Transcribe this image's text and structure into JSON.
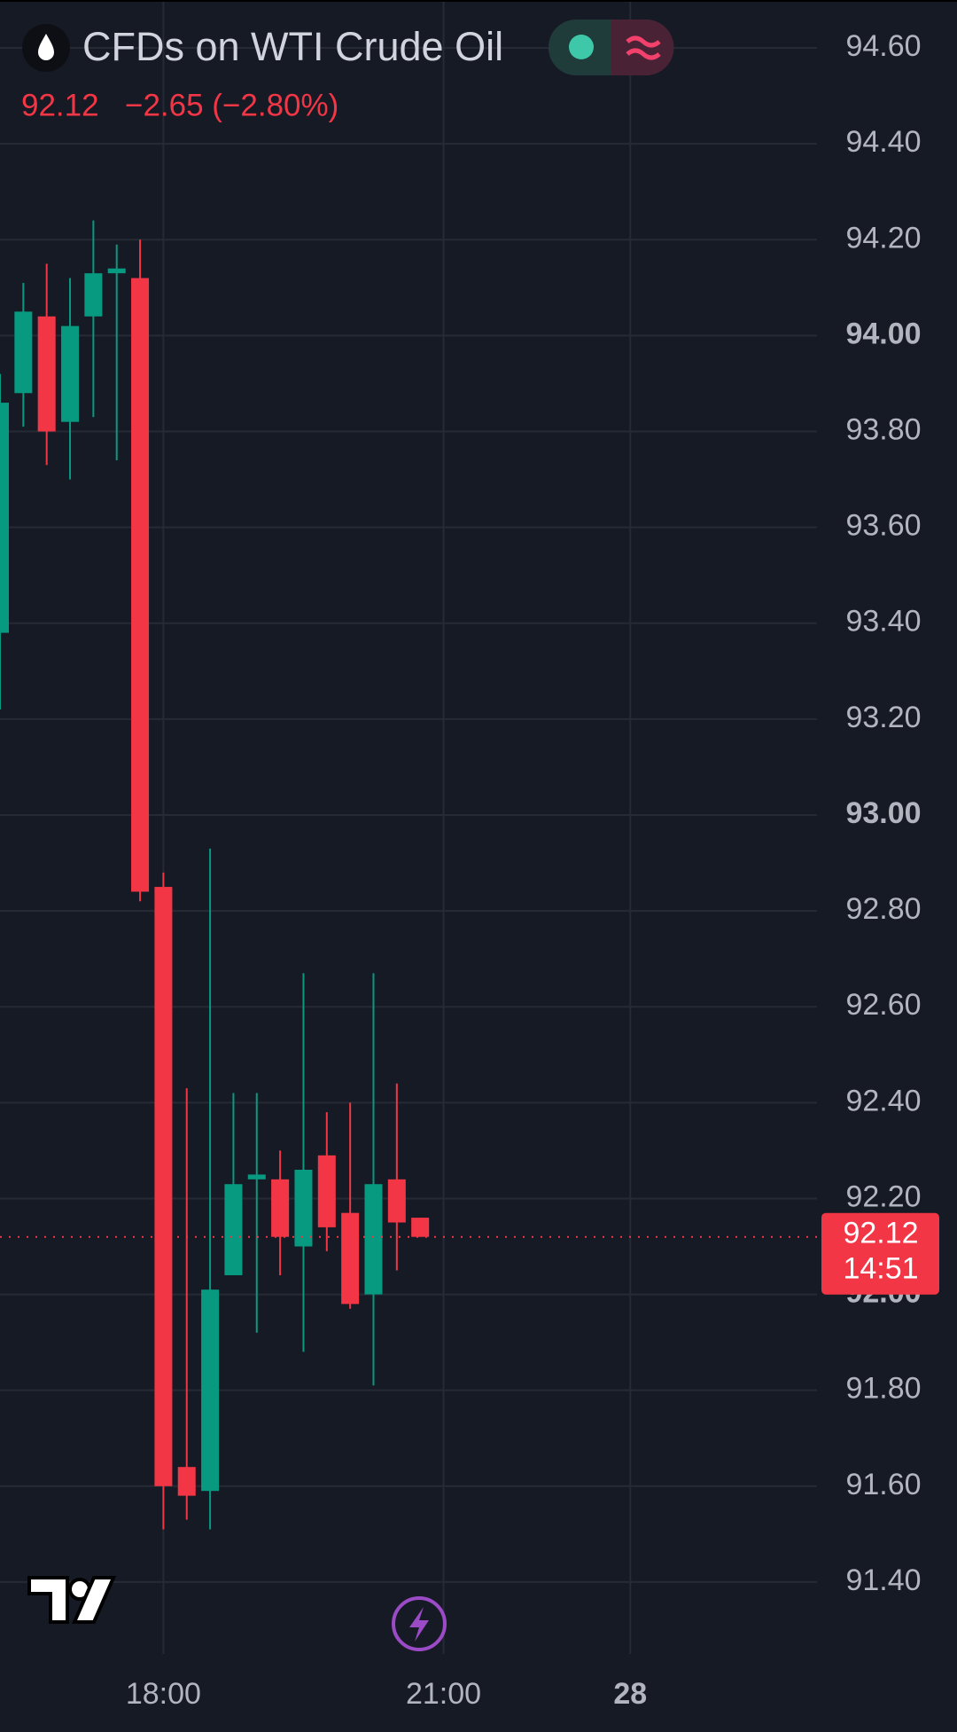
{
  "chart_data": {
    "type": "candlestick",
    "title": "CFDs on WTI Crude Oil",
    "change": "−2.65 (−2.80%)",
    "last_price": {
      "value": 92.12,
      "label": "92.12"
    },
    "countdown": "14:51",
    "up_color": "#089981",
    "down_color": "#f23645",
    "grid": true,
    "x": [
      -7,
      -6,
      -5,
      -4,
      -3,
      -2,
      -1,
      0,
      1,
      2,
      3,
      4,
      5,
      6,
      7,
      8,
      9,
      10,
      11
    ],
    "open": [
      93.38,
      93.88,
      94.04,
      93.82,
      94.04,
      94.13,
      94.12,
      92.85,
      91.64,
      91.59,
      92.04,
      92.24,
      92.24,
      92.1,
      92.29,
      92.17,
      92.0,
      92.24,
      92.16
    ],
    "high": [
      93.92,
      94.11,
      94.15,
      94.12,
      94.24,
      94.19,
      94.2,
      92.88,
      92.43,
      92.93,
      92.42,
      92.42,
      92.3,
      92.67,
      92.38,
      92.4,
      92.67,
      92.44,
      92.16
    ],
    "low": [
      93.22,
      93.81,
      93.73,
      93.7,
      93.83,
      93.74,
      92.82,
      91.51,
      91.53,
      91.51,
      92.04,
      91.92,
      92.04,
      91.88,
      92.09,
      91.97,
      91.81,
      92.05,
      92.12
    ],
    "close": [
      93.86,
      94.05,
      93.8,
      94.02,
      94.13,
      94.14,
      92.84,
      91.6,
      91.58,
      92.01,
      92.23,
      92.25,
      92.12,
      92.26,
      92.14,
      91.98,
      92.23,
      92.15,
      92.12
    ],
    "xlim": [
      -7,
      28
    ],
    "xticks": [
      {
        "value": 0,
        "label": "18:00"
      },
      {
        "value": 12,
        "label": "21:00"
      },
      {
        "value": 20,
        "label": "28"
      }
    ],
    "ylim": [
      91.25,
      94.7
    ],
    "yticks": [
      {
        "value": 94.6,
        "label": "94.60"
      },
      {
        "value": 94.4,
        "label": "94.40"
      },
      {
        "value": 94.2,
        "label": "94.20"
      },
      {
        "value": 94.0,
        "label": "94.00"
      },
      {
        "value": 93.8,
        "label": "93.80"
      },
      {
        "value": 93.6,
        "label": "93.60"
      },
      {
        "value": 93.4,
        "label": "93.40"
      },
      {
        "value": 93.2,
        "label": "93.20"
      },
      {
        "value": 93.0,
        "label": "93.00"
      },
      {
        "value": 92.8,
        "label": "92.80"
      },
      {
        "value": 92.6,
        "label": "92.60"
      },
      {
        "value": 92.4,
        "label": "92.40"
      },
      {
        "value": 92.2,
        "label": "92.20"
      },
      {
        "value": 92.0,
        "label": "92.00"
      },
      {
        "value": 91.8,
        "label": "91.80"
      },
      {
        "value": 91.6,
        "label": "91.60"
      },
      {
        "value": 91.4,
        "label": "91.40"
      }
    ]
  }
}
